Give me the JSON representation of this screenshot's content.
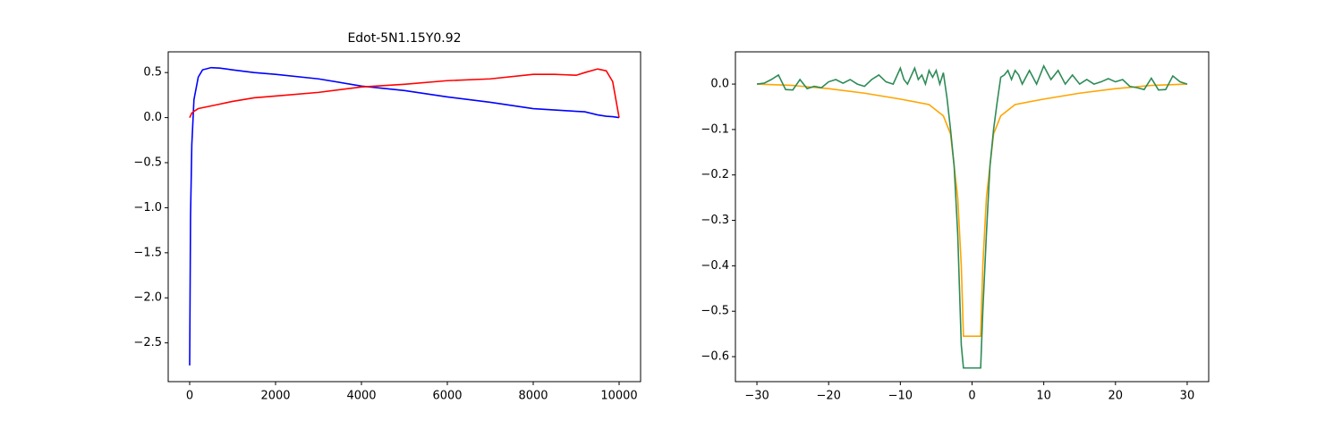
{
  "chart_data": [
    {
      "type": "line",
      "title": "Edot-5N1.15Y0.92",
      "x": [
        0,
        20,
        50,
        100,
        200,
        300,
        500,
        700,
        1000,
        1500,
        2000,
        3000,
        4000,
        5000,
        6000,
        7000,
        8000,
        8500,
        9000,
        9200,
        9500,
        9700,
        9850,
        10000
      ],
      "series": [
        {
          "color": "#0000ff",
          "values": [
            -2.75,
            -1.1,
            -0.3,
            0.2,
            0.45,
            0.53,
            0.555,
            0.55,
            0.53,
            0.5,
            0.48,
            0.43,
            0.35,
            0.3,
            0.23,
            0.17,
            0.1,
            0.085,
            0.07,
            0.065,
            0.03,
            0.015,
            0.01,
            0.0
          ]
        },
        {
          "color": "#ff0000",
          "values": [
            0,
            0.02,
            0.05,
            0.07,
            0.1,
            0.11,
            0.13,
            0.15,
            0.18,
            0.22,
            0.24,
            0.28,
            0.34,
            0.37,
            0.41,
            0.43,
            0.48,
            0.48,
            0.47,
            0.5,
            0.54,
            0.52,
            0.4,
            0.0
          ]
        }
      ],
      "xlim": [
        -500,
        10500
      ],
      "xticks": [
        0,
        2000,
        4000,
        6000,
        8000,
        10000
      ],
      "ylim": [
        -2.93,
        0.73
      ],
      "yticks": [
        {
          "value": -2.5,
          "label": "−2.5"
        },
        {
          "value": -2.0,
          "label": "−2.0"
        },
        {
          "value": -1.5,
          "label": "−1.5"
        },
        {
          "value": -1.0,
          "label": "−1.0"
        },
        {
          "value": -0.5,
          "label": "−0.5"
        },
        {
          "value": 0,
          "label": "0.0"
        },
        0.5
      ]
    },
    {
      "type": "line",
      "series": [
        {
          "color": "#ffa500",
          "x": [
            -30,
            -25,
            -20,
            -15,
            -10,
            -6,
            -4,
            -3,
            -2,
            -1.5,
            -1.2,
            1.2,
            1.5,
            2,
            3,
            4,
            6,
            10,
            15,
            20,
            25,
            30
          ],
          "values": [
            0,
            -0.003,
            -0.01,
            -0.02,
            -0.033,
            -0.045,
            -0.07,
            -0.11,
            -0.25,
            -0.4,
            -0.555,
            -0.555,
            -0.4,
            -0.25,
            -0.11,
            -0.07,
            -0.045,
            -0.033,
            -0.02,
            -0.01,
            -0.003,
            0
          ]
        },
        {
          "color": "#2e8b57",
          "x": [
            -30,
            -29,
            -28,
            -27,
            -26,
            -25,
            -24,
            -23,
            -22,
            -21,
            -20,
            -19,
            -18,
            -17,
            -16,
            -15,
            -14,
            -13,
            -12,
            -11,
            -10,
            -9.5,
            -9,
            -8,
            -7.5,
            -7,
            -6.5,
            -6,
            -5.5,
            -5,
            -4.5,
            -4,
            -3.5,
            -3,
            -2.5,
            -2,
            -1.5,
            -1.2,
            1.2,
            1.5,
            2,
            2.5,
            3,
            3.5,
            4,
            4.5,
            5,
            5.5,
            6,
            6.5,
            7,
            8,
            9,
            10,
            11,
            12,
            13,
            14,
            15,
            16,
            17,
            18,
            19,
            20,
            21,
            22,
            23,
            24,
            25,
            26,
            27,
            28,
            29,
            30
          ],
          "values": [
            0,
            0.002,
            0.01,
            0.02,
            -0.012,
            -0.013,
            0.01,
            -0.01,
            -0.005,
            -0.008,
            0.005,
            0.01,
            0.002,
            0.01,
            0.0,
            -0.005,
            0.01,
            0.02,
            0.005,
            0.0,
            0.035,
            0.01,
            0.0,
            0.035,
            0.01,
            0.02,
            0.0,
            0.03,
            0.015,
            0.03,
            0.0,
            0.025,
            -0.03,
            -0.1,
            -0.18,
            -0.33,
            -0.575,
            -0.625,
            -0.625,
            -0.5,
            -0.33,
            -0.18,
            -0.1,
            -0.04,
            0.015,
            0.02,
            0.03,
            0.01,
            0.03,
            0.02,
            0.0,
            0.03,
            0.0,
            0.04,
            0.01,
            0.03,
            0.0,
            0.02,
            0.0,
            0.01,
            0.0,
            0.005,
            0.012,
            0.005,
            0.01,
            -0.005,
            -0.008,
            -0.012,
            0.013,
            -0.013,
            -0.012,
            0.018,
            0.005,
            0.0
          ]
        }
      ],
      "xlim": [
        -33,
        33
      ],
      "xticks": [
        {
          "value": -30,
          "label": "−30"
        },
        {
          "value": -20,
          "label": "−20"
        },
        {
          "value": -10,
          "label": "−10"
        },
        0,
        10,
        20,
        30
      ],
      "ylim": [
        -0.655,
        0.071
      ],
      "yticks": [
        {
          "value": -0.6,
          "label": "−0.6"
        },
        {
          "value": -0.5,
          "label": "−0.5"
        },
        {
          "value": -0.4,
          "label": "−0.4"
        },
        {
          "value": -0.3,
          "label": "−0.3"
        },
        {
          "value": -0.2,
          "label": "−0.2"
        },
        {
          "value": -0.1,
          "label": "−0.1"
        },
        {
          "value": 0,
          "label": "0.0"
        }
      ]
    }
  ]
}
